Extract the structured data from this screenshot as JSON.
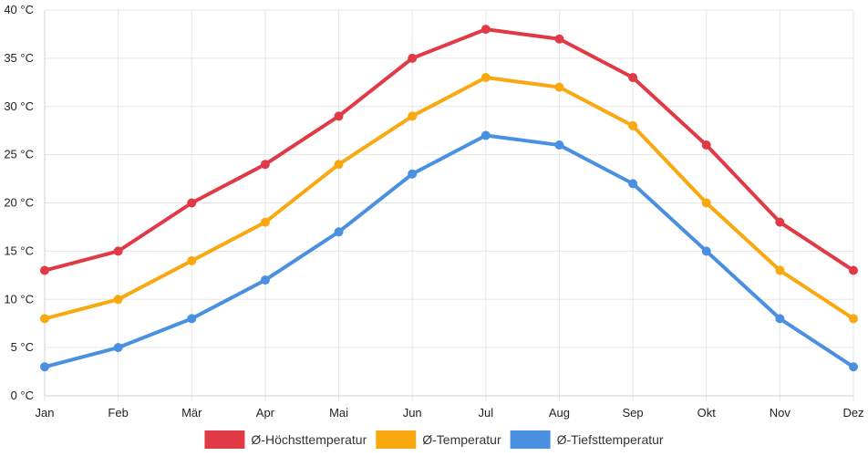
{
  "chart_data": {
    "type": "line",
    "title": "",
    "xlabel": "",
    "ylabel": "",
    "y_unit_suffix": " °C",
    "ylim": [
      0,
      40
    ],
    "y_ticks": [
      0,
      5,
      10,
      15,
      20,
      25,
      30,
      35,
      40
    ],
    "grid": true,
    "legend_position": "bottom",
    "categories": [
      "Jan",
      "Feb",
      "Mär",
      "Apr",
      "Mai",
      "Jun",
      "Jul",
      "Aug",
      "Sep",
      "Okt",
      "Nov",
      "Dez"
    ],
    "series": [
      {
        "name": "Ø-Höchsttemperatur",
        "color": "#e03a47",
        "values": [
          13,
          15,
          20,
          24,
          29,
          35,
          38,
          37,
          33,
          26,
          18,
          13
        ]
      },
      {
        "name": "Ø-Temperatur",
        "color": "#f9a80f",
        "values": [
          8,
          10,
          14,
          18,
          24,
          29,
          33,
          32,
          28,
          20,
          13,
          8
        ]
      },
      {
        "name": "Ø-Tiefsttemperatur",
        "color": "#4a90e0",
        "values": [
          3,
          5,
          8,
          12,
          17,
          23,
          27,
          26,
          22,
          15,
          8,
          3
        ]
      }
    ]
  }
}
